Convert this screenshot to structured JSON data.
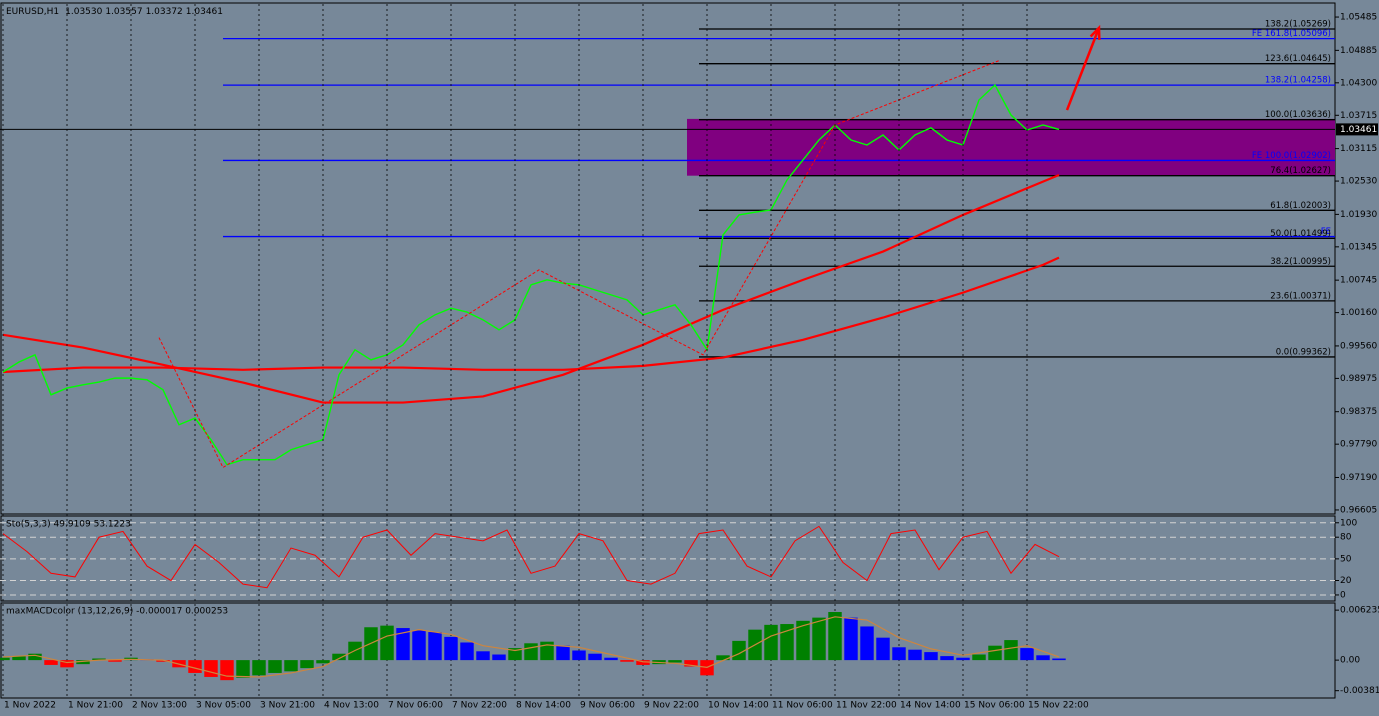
{
  "chart_data": [
    {
      "type": "line",
      "title": "EURUSD,H1",
      "header_values": [
        "1.03530",
        "1.03557",
        "1.03372",
        "1.03461"
      ],
      "xlim": [
        -0.75,
        333
      ],
      "ylim": [
        0.9655,
        1.0572
      ],
      "xticks": [
        {
          "value": 0,
          "label": "1 Nov 2022"
        },
        {
          "value": 16,
          "label": "1 Nov 21:00"
        },
        {
          "value": 32,
          "label": "2 Nov 13:00"
        },
        {
          "value": 48,
          "label": "3 Nov 05:00"
        },
        {
          "value": 64,
          "label": "3 Nov 21:00"
        },
        {
          "value": 80,
          "label": "4 Nov 13:00"
        },
        {
          "value": 96,
          "label": "7 Nov 06:00"
        },
        {
          "value": 112,
          "label": "7 Nov 22:00"
        },
        {
          "value": 128,
          "label": "8 Nov 14:00"
        },
        {
          "value": 144,
          "label": "9 Nov 06:00"
        },
        {
          "value": 160,
          "label": "9 Nov 22:00"
        },
        {
          "value": 176,
          "label": "10 Nov 14:00"
        },
        {
          "value": 192,
          "label": "11 Nov 06:00"
        },
        {
          "value": 208,
          "label": "11 Nov 22:00"
        },
        {
          "value": 224,
          "label": "14 Nov 14:00"
        },
        {
          "value": 240,
          "label": "15 Nov 06:00"
        },
        {
          "value": 256,
          "label": "15 Nov 22:00"
        }
      ],
      "yticks": [
        1.05485,
        1.04885,
        {
          "value": 1.043,
          "label": "1.04300"
        },
        1.03715,
        1.03115,
        {
          "value": 1.0253,
          "label": "1.02530"
        },
        {
          "value": 1.0193,
          "label": "1.01930"
        },
        1.01345,
        1.00745,
        {
          "value": 1.0016,
          "label": "1.00160"
        },
        {
          "value": 0.9956,
          "label": "0.99560"
        },
        0.98975,
        0.98375,
        {
          "value": 0.9779,
          "label": "0.97790"
        },
        {
          "value": 0.9719,
          "label": "0.97190"
        },
        0.96605
      ],
      "series": [
        {
          "color": "#ff0000",
          "x": [
            0,
            20,
            40,
            60,
            80,
            100,
            120,
            140,
            160,
            180,
            200,
            220,
            240,
            260,
            264
          ],
          "values": [
            0.9976,
            0.9953,
            0.9922,
            0.989,
            0.9854,
            0.9854,
            0.9865,
            0.9904,
            0.9958,
            1.0021,
            1.0075,
            1.0126,
            1.0192,
            1.0252,
            1.0264
          ]
        },
        {
          "color": "#ff0000",
          "x": [
            0,
            20,
            40,
            60,
            80,
            100,
            120,
            140,
            160,
            180,
            200,
            220,
            240,
            260,
            264
          ],
          "values": [
            0.9909,
            0.9917,
            0.9917,
            0.9913,
            0.9917,
            0.9917,
            0.9913,
            0.9913,
            0.992,
            0.9935,
            0.9967,
            1.0007,
            1.0052,
            1.0102,
            1.0115
          ]
        },
        {
          "color": "#00ff00",
          "x": [
            0,
            4,
            8,
            12,
            16,
            20,
            24,
            28,
            32,
            36,
            40,
            44,
            48,
            52,
            56,
            60,
            64,
            68,
            72,
            76,
            80,
            84,
            88,
            92,
            96,
            100,
            104,
            108,
            112,
            116,
            120,
            124,
            128,
            132,
            136,
            140,
            144,
            148,
            152,
            156,
            160,
            164,
            168,
            172,
            176,
            180,
            184,
            188,
            192,
            196,
            200,
            204,
            208,
            212,
            216,
            220,
            224,
            228,
            232,
            236,
            240,
            244,
            248,
            252,
            256,
            260,
            264
          ],
          "values": [
            0.9909,
            0.9927,
            0.994,
            0.9868,
            0.988,
            0.9886,
            0.9891,
            0.9898,
            0.9898,
            0.9895,
            0.9877,
            0.9814,
            0.9826,
            0.9787,
            0.9742,
            0.9751,
            0.9751,
            0.9751,
            0.9769,
            0.9778,
            0.9787,
            0.9904,
            0.9949,
            0.9931,
            0.994,
            0.9958,
            0.9994,
            1.0012,
            1.0024,
            1.0017,
            1.0003,
            0.9985,
            1.0003,
            1.0066,
            1.0075,
            1.0069,
            1.0066,
            1.0057,
            1.0048,
            1.0039,
            1.0012,
            1.0021,
            1.003,
            0.9994,
            0.9949,
            1.0156,
            1.0192,
            1.0197,
            1.0201,
            1.0255,
            1.0291,
            1.0327,
            1.0354,
            1.0327,
            1.0318,
            1.0336,
            1.0309,
            1.0336,
            1.0349,
            1.0327,
            1.0318,
            1.0399,
            1.0426,
            1.0372,
            1.0345,
            1.0354,
            1.03461
          ]
        }
      ],
      "zone": {
        "x": 171,
        "y": [
          1.02627,
          1.0365
        ],
        "color": "#800080"
      },
      "levels": [
        {
          "label": "138.2(1.05269)",
          "value": 1.05269,
          "start": 174,
          "color": "#000000"
        },
        {
          "label": "FE 161.8(1.05096)",
          "value": 1.05096,
          "start": 55,
          "color": "#0000ff"
        },
        {
          "label": "123.6(1.04645)",
          "value": 1.04645,
          "start": 174,
          "color": "#000000"
        },
        {
          "label": "138.2(1.04258)",
          "value": 1.04258,
          "start": 55,
          "color": "#0000ff"
        },
        {
          "label": "100.0(1.03636)",
          "value": 1.03636,
          "start": 174,
          "color": "#000000"
        },
        {
          "label": "FE 100.0(1.02902)",
          "value": 1.02902,
          "start": 55,
          "color": "#0000ff"
        },
        {
          "label": "76.4(1.02627)",
          "value": 1.02627,
          "start": 174,
          "color": "#000000"
        },
        {
          "label": "61.8(1.02003)",
          "value": 1.02003,
          "start": 174,
          "color": "#000000"
        },
        {
          "label": "FE",
          "value": 1.0153,
          "start": 55,
          "color": "#0000ff"
        },
        {
          "label": "50.0(1.01499)",
          "value": 1.01499,
          "start": 174,
          "color": "#000000"
        },
        {
          "label": "38.2(1.00995)",
          "value": 1.00995,
          "start": 174,
          "color": "#000000"
        },
        {
          "label": "23.6(1.00371)",
          "value": 1.00371,
          "start": 174,
          "color": "#000000"
        },
        {
          "label": "0.0(0.99362)",
          "value": 0.99362,
          "start": 174,
          "color": "#000000"
        }
      ],
      "last_price": {
        "value": 1.03461,
        "label": "1.03461"
      },
      "zigzag": {
        "x": [
          39,
          55,
          134,
          175,
          208,
          249
        ],
        "y": [
          0.9971,
          0.9737,
          1.0093,
          0.994,
          1.0354,
          1.047
        ],
        "color": "#ff0000"
      },
      "arrow": {
        "x": [
          266,
          274
        ],
        "y": [
          1.0381,
          1.0529
        ],
        "color": "#ff0000"
      }
    },
    {
      "type": "line",
      "title": "Sto(5,3,3) 49.9109 53.1223",
      "xlim": [
        -0.75,
        333
      ],
      "ylim": [
        -7,
        108
      ],
      "yticks": [
        100,
        80,
        50,
        20,
        0
      ],
      "grid": true,
      "x": [
        0,
        6,
        12,
        18,
        24,
        30,
        36,
        42,
        48,
        54,
        60,
        66,
        72,
        78,
        84,
        90,
        96,
        102,
        108,
        114,
        120,
        126,
        132,
        138,
        144,
        150,
        156,
        162,
        168,
        174,
        180,
        186,
        192,
        198,
        204,
        210,
        216,
        222,
        228,
        234,
        240,
        246,
        252,
        258,
        264
      ],
      "series": [
        {
          "color": "#ff0000",
          "values": [
            85,
            60,
            30,
            25,
            80,
            88,
            40,
            20,
            70,
            45,
            15,
            10,
            65,
            55,
            25,
            80,
            90,
            55,
            85,
            80,
            75,
            90,
            30,
            40,
            85,
            75,
            20,
            15,
            30,
            85,
            90,
            40,
            25,
            75,
            95,
            45,
            20,
            85,
            90,
            35,
            80,
            88,
            30,
            70,
            53
          ]
        }
      ]
    },
    {
      "type": "bar",
      "title": "maxMACDcolor (13,12,26,9) -0.000017 0.000253",
      "xlim": [
        -0.75,
        333
      ],
      "ylim": [
        -0.0046,
        0.007
      ],
      "yticks": [
        0.006235,
        {
          "value": 0,
          "label": "0.00"
        },
        -0.003812
      ],
      "x": [
        0,
        4,
        8,
        12,
        16,
        20,
        24,
        28,
        32,
        36,
        40,
        44,
        48,
        52,
        56,
        60,
        64,
        68,
        72,
        76,
        80,
        84,
        88,
        92,
        96,
        100,
        104,
        108,
        112,
        116,
        120,
        124,
        128,
        132,
        136,
        140,
        144,
        148,
        152,
        156,
        160,
        164,
        168,
        172,
        176,
        180,
        184,
        188,
        192,
        196,
        200,
        204,
        208,
        212,
        216,
        220,
        224,
        228,
        232,
        236,
        240,
        244,
        248,
        252,
        256,
        260,
        264
      ],
      "values": [
        0.0003,
        0.0005,
        0.0008,
        -0.0006,
        -0.0009,
        -0.0005,
        0.0002,
        -0.0002,
        0.0003,
        0.0001,
        -0.0002,
        -0.0009,
        -0.0016,
        -0.0021,
        -0.0025,
        -0.0022,
        -0.0019,
        -0.0016,
        -0.0014,
        -0.001,
        -0.0004,
        0.0008,
        0.0023,
        0.0041,
        0.0043,
        0.004,
        0.0037,
        0.0035,
        0.0029,
        0.0022,
        0.0011,
        0.0007,
        0.0015,
        0.0021,
        0.0023,
        0.0018,
        0.0012,
        0.0008,
        0.0003,
        -0.0002,
        -0.0006,
        -0.0005,
        -0.0003,
        -0.0008,
        -0.0019,
        0.0006,
        0.0024,
        0.0038,
        0.0044,
        0.0045,
        0.0049,
        0.0053,
        0.006,
        0.0053,
        0.0042,
        0.0028,
        0.0016,
        0.0013,
        0.001,
        0.0005,
        0.0003,
        0.0007,
        0.0018,
        0.0025,
        0.0015,
        0.0006,
        0.0002
      ],
      "colors": {
        "rise": "#008000",
        "fall_above_zero": "#0000ff",
        "fall_below_zero": "#ff0000"
      },
      "signal": {
        "color": "#cd853f",
        "x": [
          0,
          8,
          16,
          24,
          32,
          40,
          48,
          56,
          64,
          72,
          80,
          88,
          96,
          104,
          112,
          120,
          128,
          136,
          144,
          152,
          160,
          168,
          176,
          184,
          192,
          200,
          208,
          216,
          224,
          232,
          240,
          248,
          256,
          264
        ],
        "values": [
          0.0004,
          0.0006,
          -0.0003,
          0,
          0.0001,
          0,
          -0.001,
          -0.002,
          -0.0021,
          -0.0016,
          -0.0008,
          0.0012,
          0.003,
          0.0038,
          0.0032,
          0.0018,
          0.0012,
          0.0019,
          0.0016,
          0.0007,
          -0.0002,
          -0.0004,
          -0.0009,
          0.0008,
          0.003,
          0.0043,
          0.0054,
          0.005,
          0.0028,
          0.0014,
          0.0006,
          0.0012,
          0.0018,
          0.0004
        ]
      }
    }
  ]
}
